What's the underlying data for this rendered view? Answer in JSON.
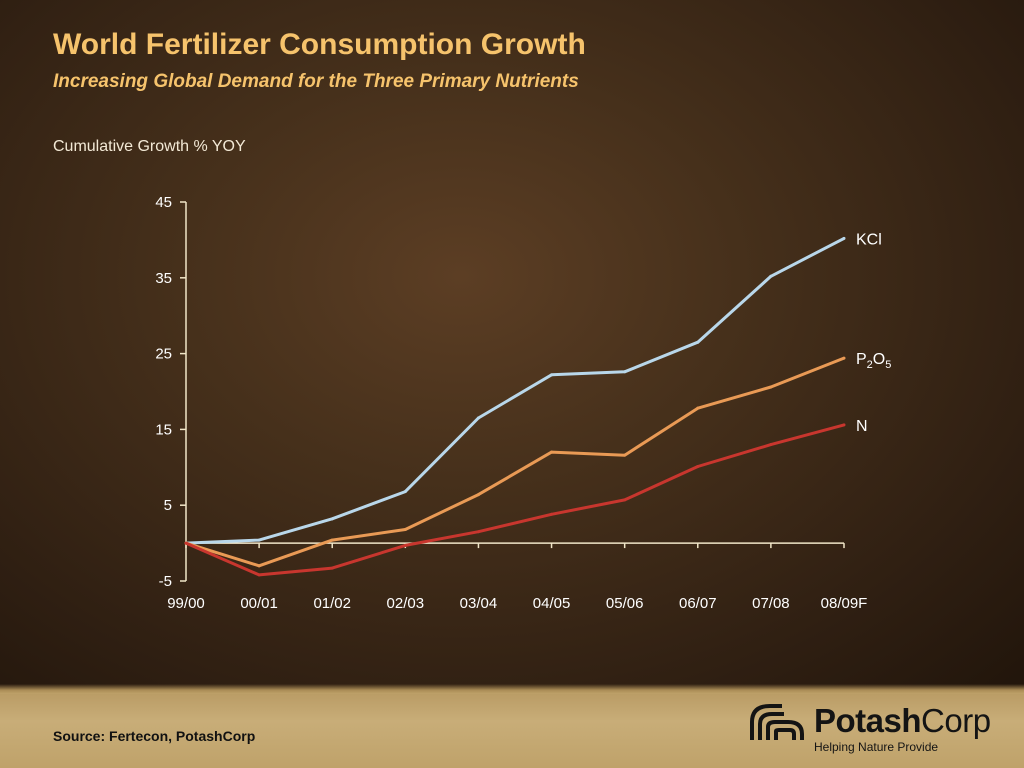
{
  "header": {
    "title": "World Fertilizer Consumption Growth",
    "subtitle": "Increasing Global Demand for the Three Primary Nutrients"
  },
  "footer": {
    "source": "Source: Fertecon, PotashCorp",
    "logo_name_bold": "Potash",
    "logo_name_regular": "Corp",
    "logo_tagline": "Helping Nature Provide"
  },
  "colors": {
    "title": "#f6c36c",
    "kcl": "#b9d7ea",
    "p2o5": "#e99a55",
    "n": "#c8362e",
    "axis": "#f1e6c8"
  },
  "chart_data": {
    "type": "line",
    "title": "World Fertilizer Consumption Growth",
    "subtitle": "Increasing Global Demand for the Three Primary Nutrients",
    "xlabel": "",
    "ylabel": "Cumulative Growth % YOY",
    "ylim": [
      -5,
      45
    ],
    "yticks": [
      -5,
      5,
      15,
      25,
      35,
      45
    ],
    "categories": [
      "99/00",
      "00/01",
      "01/02",
      "02/03",
      "03/04",
      "04/05",
      "05/06",
      "06/07",
      "07/08",
      "08/09F"
    ],
    "legend": "inline labels at line ends (right)",
    "grid": false,
    "series": [
      {
        "name": "KCl",
        "label_main": "KCl",
        "label_sub1": "",
        "label_mid": "",
        "label_sub2": "",
        "color": "#b9d7ea",
        "values": [
          0,
          0.4,
          3.2,
          6.8,
          16.5,
          22.2,
          22.6,
          26.5,
          35.2,
          40.2
        ]
      },
      {
        "name": "P2O5",
        "label_main": "P",
        "label_sub1": "2",
        "label_mid": "O",
        "label_sub2": "5",
        "color": "#e99a55",
        "values": [
          0,
          -3.0,
          0.4,
          1.8,
          6.4,
          12.0,
          11.6,
          17.8,
          20.6,
          24.4
        ]
      },
      {
        "name": "N",
        "label_main": "N",
        "label_sub1": "",
        "label_mid": "",
        "label_sub2": "",
        "color": "#c8362e",
        "values": [
          0,
          -4.2,
          -3.3,
          -0.3,
          1.5,
          3.8,
          5.7,
          10.1,
          13.0,
          15.6
        ]
      }
    ]
  }
}
